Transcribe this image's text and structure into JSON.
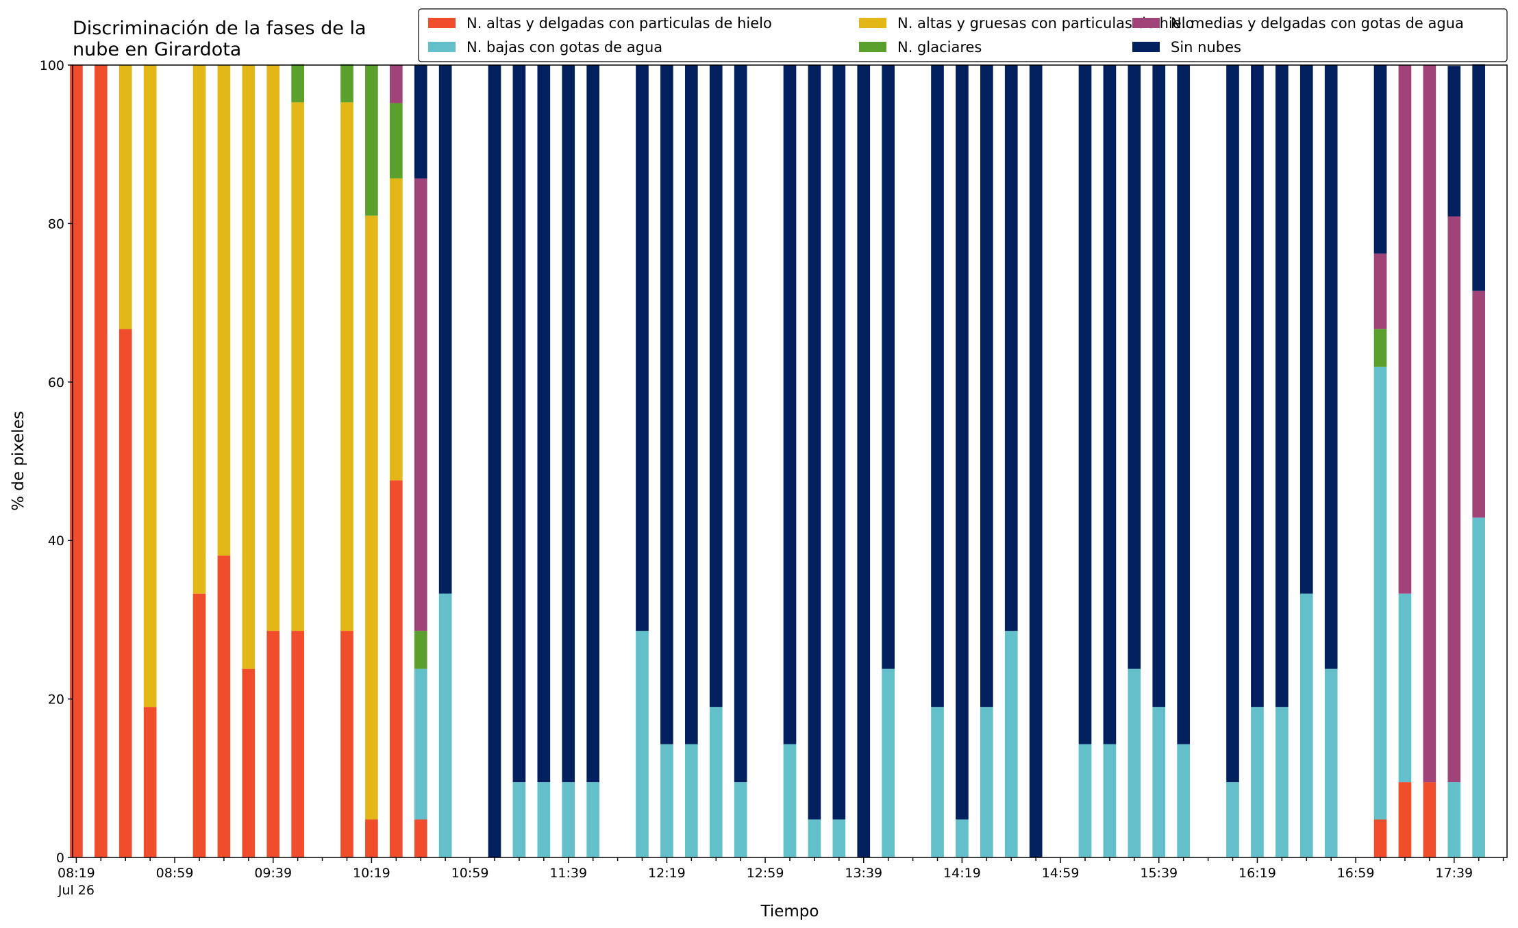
{
  "chart_data": {
    "type": "bar",
    "stacked": true,
    "title": "Discriminación de la fases de la\nnube en Girardota",
    "xlabel": "Tiempo",
    "ylabel": "% de pixeles",
    "ylim": [
      0,
      100
    ],
    "yticks": [
      0,
      20,
      40,
      60,
      80,
      100
    ],
    "x_range": [
      "08:19",
      "17:59"
    ],
    "x_step_minutes": 10,
    "xtick_labels": [
      "08:19",
      "08:59",
      "09:39",
      "10:19",
      "10:59",
      "11:39",
      "12:19",
      "12:59",
      "13:39",
      "14:19",
      "14:59",
      "15:39",
      "16:19",
      "16:59",
      "17:39"
    ],
    "xtick_sublabel": "Jul 26",
    "legend_position": "top-right",
    "legend_columns": 3,
    "legend_order": [
      0,
      1,
      2,
      3,
      4,
      5
    ],
    "categories": [
      "08:19",
      "08:29",
      "08:39",
      "08:49",
      "09:09",
      "09:19",
      "09:29",
      "09:39",
      "09:49",
      "10:09",
      "10:19",
      "10:29",
      "10:39",
      "10:49",
      "11:09",
      "11:19",
      "11:29",
      "11:39",
      "11:49",
      "12:09",
      "12:19",
      "12:29",
      "12:39",
      "12:49",
      "13:09",
      "13:19",
      "13:29",
      "13:39",
      "13:49",
      "14:09",
      "14:19",
      "14:29",
      "14:39",
      "14:49",
      "15:09",
      "15:19",
      "15:29",
      "15:39",
      "15:49",
      "16:09",
      "16:19",
      "16:29",
      "16:39",
      "16:49",
      "17:09",
      "17:19",
      "17:29",
      "17:39",
      "17:49"
    ],
    "series": [
      {
        "name": "N. altas y delgadas con particulas de hielo",
        "color": "#EF4D2C",
        "values": [
          100,
          100,
          66.7,
          19,
          33.3,
          38.1,
          23.8,
          28.6,
          28.6,
          28.6,
          4.8,
          47.6,
          4.8,
          0,
          0,
          0,
          0,
          0,
          0,
          0,
          0,
          0,
          0,
          0,
          0,
          0,
          0,
          0,
          0,
          0,
          0,
          0,
          0,
          0,
          0,
          0,
          0,
          0,
          0,
          0,
          0,
          0,
          0,
          0,
          4.8,
          9.5,
          9.5,
          0,
          0
        ]
      },
      {
        "name": "N. bajas con gotas de agua",
        "color": "#63BFCA",
        "values": [
          0,
          0,
          0,
          0,
          0,
          0,
          0,
          0,
          0,
          0,
          0,
          0,
          19,
          33.3,
          0,
          9.5,
          9.5,
          9.5,
          9.5,
          28.6,
          14.3,
          14.3,
          19,
          9.5,
          14.3,
          4.8,
          4.8,
          0,
          23.8,
          19,
          4.8,
          19,
          28.6,
          0,
          14.3,
          14.3,
          23.8,
          19,
          14.3,
          9.5,
          19,
          19,
          33.3,
          23.8,
          57.1,
          23.8,
          0,
          9.5,
          42.9
        ]
      },
      {
        "name": "N. altas y gruesas con particulas de hielo",
        "color": "#E4B718",
        "values": [
          0,
          0,
          33.3,
          81,
          66.7,
          61.9,
          76.2,
          71.4,
          66.7,
          66.7,
          76.2,
          38.1,
          0,
          0,
          0,
          0,
          0,
          0,
          0,
          0,
          0,
          0,
          0,
          0,
          0,
          0,
          0,
          0,
          0,
          0,
          0,
          0,
          0,
          0,
          0,
          0,
          0,
          0,
          0,
          0,
          0,
          0,
          0,
          0,
          0,
          0,
          0,
          0,
          0
        ]
      },
      {
        "name": "N. glaciares",
        "color": "#5AA02D",
        "values": [
          0,
          0,
          0,
          0,
          0,
          0,
          0,
          0,
          4.8,
          4.8,
          19,
          9.5,
          4.8,
          0,
          0,
          0,
          0,
          0,
          0,
          0,
          0,
          0,
          0,
          0,
          0,
          0,
          0,
          0,
          0,
          0,
          0,
          0,
          0,
          0,
          0,
          0,
          0,
          0,
          0,
          0,
          0,
          0,
          0,
          0,
          4.8,
          0,
          0,
          0,
          0
        ]
      },
      {
        "name": "N. medias y delgadas con gotas de agua",
        "color": "#A04378",
        "values": [
          0,
          0,
          0,
          0,
          0,
          0,
          0,
          0,
          0,
          0,
          0,
          4.8,
          57.1,
          0,
          0,
          0,
          0,
          0,
          0,
          0,
          0,
          0,
          0,
          0,
          0,
          0,
          0,
          0,
          0,
          0,
          0,
          0,
          0,
          0,
          0,
          0,
          0,
          0,
          0,
          0,
          0,
          0,
          0,
          0,
          9.5,
          66.7,
          90.5,
          71.4,
          28.6
        ]
      },
      {
        "name": "Sin nubes",
        "color": "#03205E",
        "values": [
          0,
          0,
          0,
          0,
          0,
          0,
          0,
          0,
          0,
          0,
          0,
          0,
          14.3,
          66.7,
          100,
          90.5,
          90.5,
          90.5,
          90.5,
          71.4,
          85.7,
          85.7,
          81,
          90.5,
          85.7,
          95.2,
          95.2,
          100,
          76.2,
          81,
          95.2,
          81,
          71.4,
          100,
          85.7,
          85.7,
          76.2,
          81,
          85.7,
          90.5,
          81,
          81,
          66.7,
          76.2,
          23.8,
          0,
          0,
          19,
          28.6
        ]
      }
    ]
  }
}
